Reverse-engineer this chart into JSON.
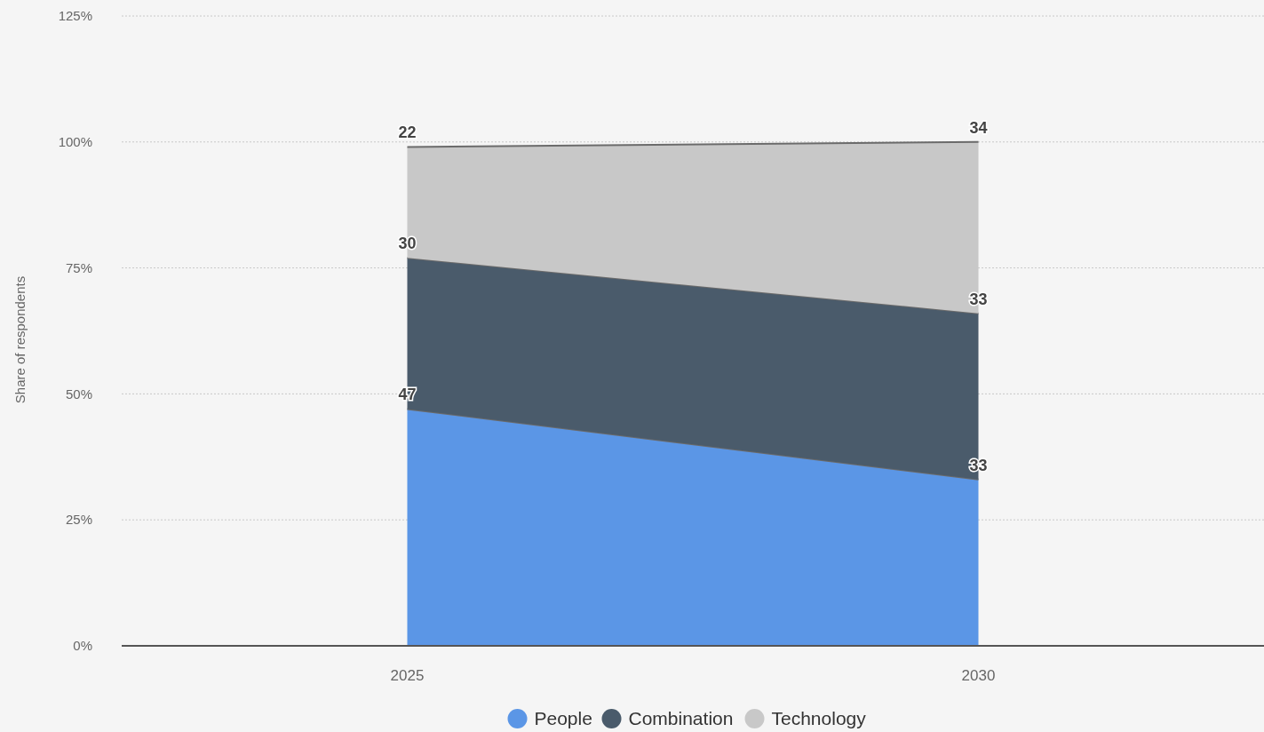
{
  "chart_data": {
    "type": "area",
    "stacked": true,
    "ylabel": "Share of respondents",
    "categories": [
      "2025",
      "2030"
    ],
    "series": [
      {
        "name": "People",
        "color": "#5b96e6",
        "values": [
          47,
          33
        ]
      },
      {
        "name": "Combination",
        "color": "#4a5b6b",
        "values": [
          30,
          33
        ]
      },
      {
        "name": "Technology",
        "color": "#c8c8c8",
        "values": [
          22,
          34
        ]
      }
    ],
    "ylim": [
      0,
      125
    ],
    "yticks": [
      {
        "value": 0,
        "label": "0%"
      },
      {
        "value": 25,
        "label": "25%"
      },
      {
        "value": 50,
        "label": "50%"
      },
      {
        "value": 75,
        "label": "75%"
      },
      {
        "value": 100,
        "label": "100%"
      },
      {
        "value": 125,
        "label": "125%"
      }
    ],
    "grid": "y",
    "legend": "bottom",
    "data_labels": true
  }
}
